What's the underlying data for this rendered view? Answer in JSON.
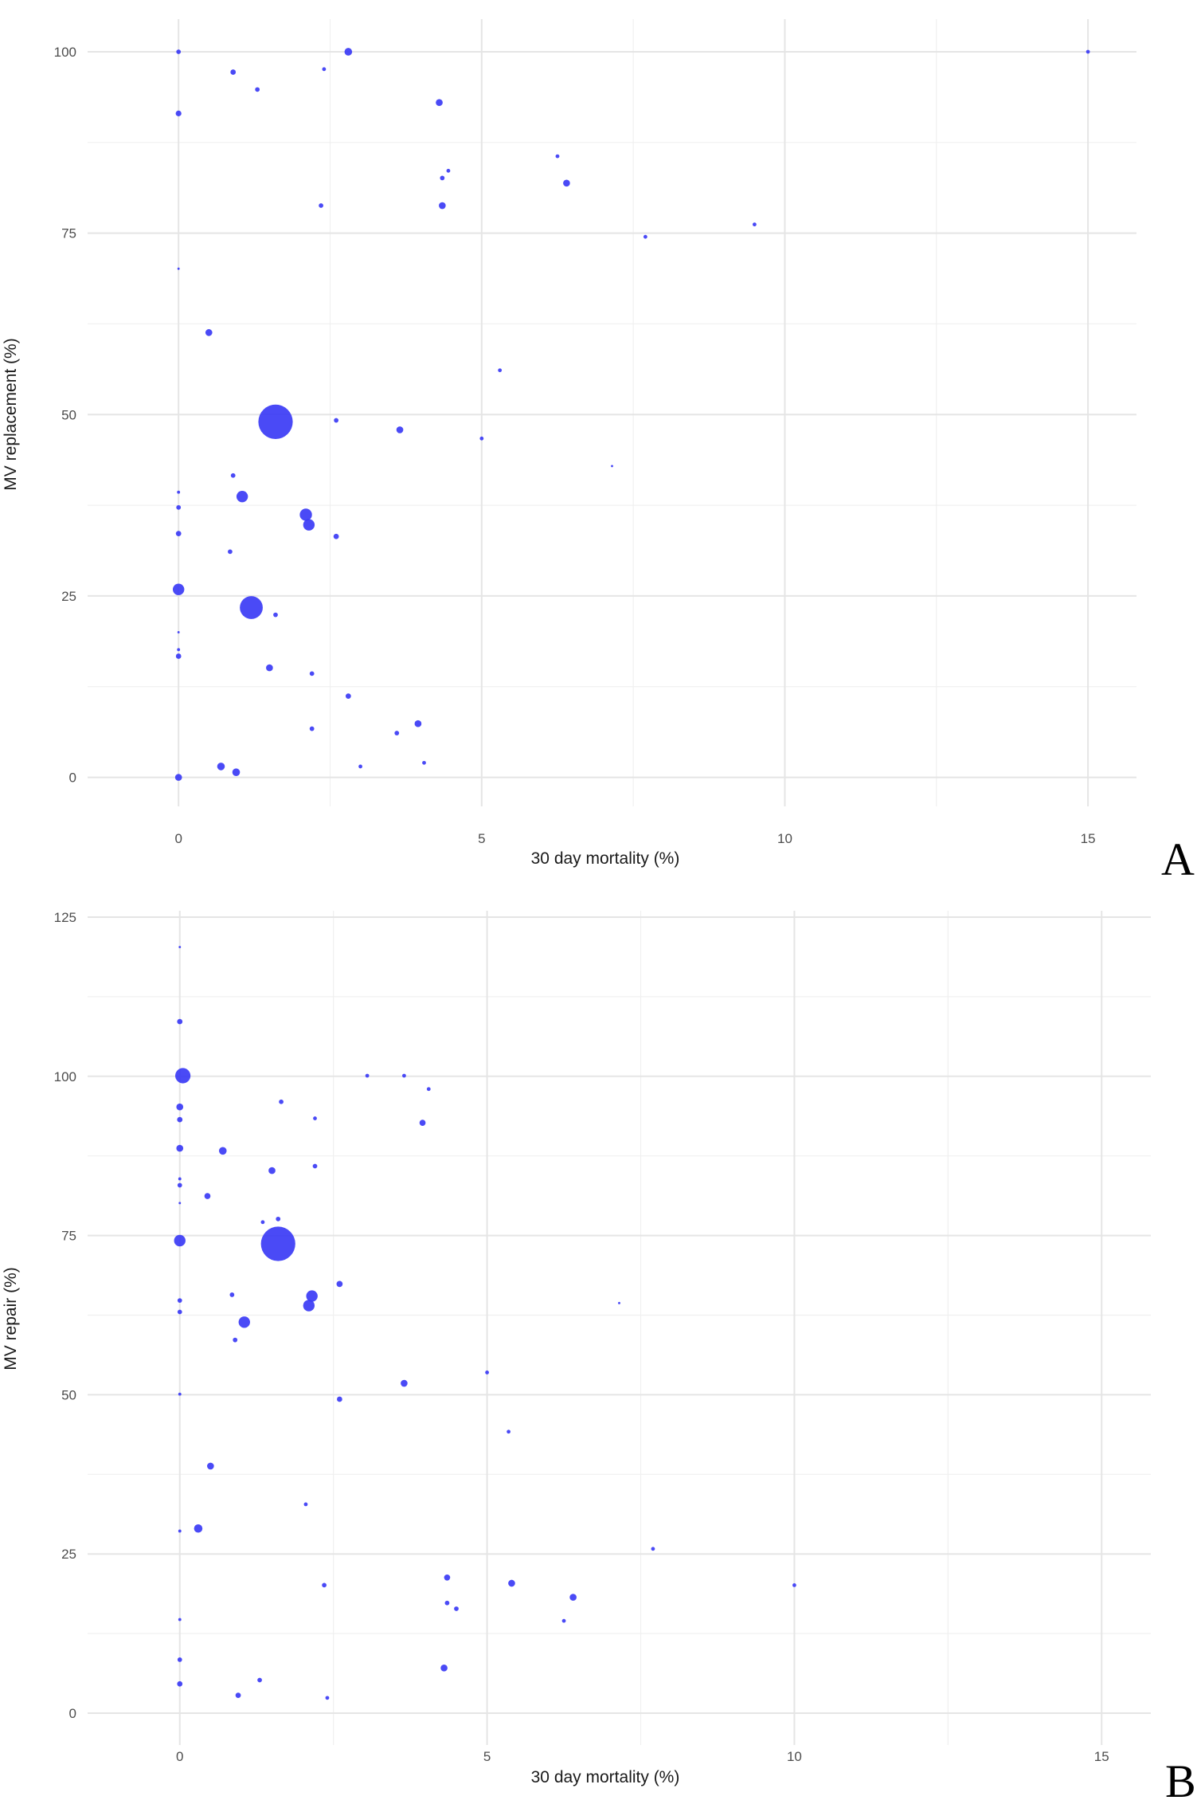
{
  "chart_data": [
    {
      "type": "scatter",
      "panel_label": "A",
      "xlabel": "30 day mortality (%)",
      "ylabel": "MV replacement (%)",
      "x_ticks": [
        "0",
        "5",
        "10",
        "15"
      ],
      "y_ticks": [
        "0",
        "25",
        "50",
        "75",
        "100"
      ],
      "xlim": [
        -1.5,
        15.8
      ],
      "ylim": [
        -4,
        104.5
      ],
      "grid": true,
      "legend": "none",
      "point_color": "#3b3bf5",
      "points": [
        {
          "x": 0,
          "y": 100,
          "size": 1.2
        },
        {
          "x": 2.8,
          "y": 100,
          "size": 2.0
        },
        {
          "x": 15.0,
          "y": 100,
          "size": 1.0
        },
        {
          "x": 0.9,
          "y": 97.2,
          "size": 1.4
        },
        {
          "x": 2.4,
          "y": 97.6,
          "size": 1.0
        },
        {
          "x": 1.3,
          "y": 94.8,
          "size": 1.2
        },
        {
          "x": 0,
          "y": 91.5,
          "size": 1.5
        },
        {
          "x": 4.3,
          "y": 93.0,
          "size": 1.8
        },
        {
          "x": 6.25,
          "y": 85.6,
          "size": 1.0
        },
        {
          "x": 4.45,
          "y": 83.6,
          "size": 1.0
        },
        {
          "x": 4.35,
          "y": 82.6,
          "size": 1.2
        },
        {
          "x": 6.4,
          "y": 81.9,
          "size": 1.8
        },
        {
          "x": 2.35,
          "y": 78.8,
          "size": 1.2
        },
        {
          "x": 4.35,
          "y": 78.8,
          "size": 1.8
        },
        {
          "x": 9.5,
          "y": 76.2,
          "size": 1.0
        },
        {
          "x": 7.7,
          "y": 74.5,
          "size": 1.0
        },
        {
          "x": 0,
          "y": 70.1,
          "size": 0.6
        },
        {
          "x": 0.5,
          "y": 61.3,
          "size": 1.8
        },
        {
          "x": 5.3,
          "y": 56.1,
          "size": 1.0
        },
        {
          "x": 1.6,
          "y": 49.0,
          "size": 9.0
        },
        {
          "x": 2.6,
          "y": 49.2,
          "size": 1.2
        },
        {
          "x": 3.65,
          "y": 47.9,
          "size": 1.8
        },
        {
          "x": 5.0,
          "y": 46.7,
          "size": 1.0
        },
        {
          "x": 7.15,
          "y": 42.9,
          "size": 0.6
        },
        {
          "x": 0.9,
          "y": 41.6,
          "size": 1.2
        },
        {
          "x": 0,
          "y": 39.3,
          "size": 0.8
        },
        {
          "x": 1.05,
          "y": 38.7,
          "size": 3.0
        },
        {
          "x": 0,
          "y": 37.2,
          "size": 1.2
        },
        {
          "x": 2.1,
          "y": 36.2,
          "size": 3.2
        },
        {
          "x": 2.15,
          "y": 34.8,
          "size": 3.0
        },
        {
          "x": 0,
          "y": 33.6,
          "size": 1.4
        },
        {
          "x": 2.6,
          "y": 33.2,
          "size": 1.4
        },
        {
          "x": 0.85,
          "y": 31.1,
          "size": 1.2
        },
        {
          "x": 0,
          "y": 25.9,
          "size": 3.0
        },
        {
          "x": 1.2,
          "y": 23.4,
          "size": 6.0
        },
        {
          "x": 1.6,
          "y": 22.4,
          "size": 1.2
        },
        {
          "x": 0,
          "y": 20.0,
          "size": 0.6
        },
        {
          "x": 0,
          "y": 17.6,
          "size": 0.8
        },
        {
          "x": 0,
          "y": 16.7,
          "size": 1.4
        },
        {
          "x": 1.5,
          "y": 15.1,
          "size": 1.8
        },
        {
          "x": 2.2,
          "y": 14.3,
          "size": 1.2
        },
        {
          "x": 2.8,
          "y": 11.2,
          "size": 1.4
        },
        {
          "x": 3.95,
          "y": 7.4,
          "size": 1.8
        },
        {
          "x": 2.2,
          "y": 6.7,
          "size": 1.2
        },
        {
          "x": 3.6,
          "y": 6.1,
          "size": 1.2
        },
        {
          "x": 4.05,
          "y": 2.0,
          "size": 1.0
        },
        {
          "x": 3.0,
          "y": 1.5,
          "size": 1.0
        },
        {
          "x": 0.7,
          "y": 1.5,
          "size": 2.0
        },
        {
          "x": 0.95,
          "y": 0.7,
          "size": 2.0
        },
        {
          "x": 0,
          "y": 0,
          "size": 1.8
        }
      ]
    },
    {
      "type": "scatter",
      "panel_label": "B",
      "xlabel": "30 day mortality (%)",
      "ylabel": "MV repair (%)",
      "x_ticks": [
        "0",
        "5",
        "10",
        "15"
      ],
      "y_ticks": [
        "0",
        "25",
        "50",
        "75",
        "100",
        "125"
      ],
      "xlim": [
        -1.5,
        15.8
      ],
      "ylim": [
        -5,
        126
      ],
      "grid": true,
      "legend": "none",
      "point_color": "#3b3bf5",
      "points": [
        {
          "x": 0,
          "y": 120.3,
          "size": 0.6
        },
        {
          "x": 0,
          "y": 108.6,
          "size": 1.4
        },
        {
          "x": 0.05,
          "y": 100.1,
          "size": 4.0
        },
        {
          "x": 3.05,
          "y": 100.1,
          "size": 1.0
        },
        {
          "x": 3.65,
          "y": 100.1,
          "size": 1.0
        },
        {
          "x": 4.05,
          "y": 98.0,
          "size": 1.0
        },
        {
          "x": 1.65,
          "y": 96.0,
          "size": 1.2
        },
        {
          "x": 0,
          "y": 95.2,
          "size": 1.8
        },
        {
          "x": 2.2,
          "y": 93.4,
          "size": 1.0
        },
        {
          "x": 0,
          "y": 93.2,
          "size": 1.4
        },
        {
          "x": 3.95,
          "y": 92.7,
          "size": 1.6
        },
        {
          "x": 0,
          "y": 88.7,
          "size": 1.8
        },
        {
          "x": 0.7,
          "y": 88.3,
          "size": 2.0
        },
        {
          "x": 2.2,
          "y": 85.9,
          "size": 1.2
        },
        {
          "x": 1.5,
          "y": 85.2,
          "size": 1.8
        },
        {
          "x": 0,
          "y": 83.9,
          "size": 0.8
        },
        {
          "x": 0,
          "y": 82.9,
          "size": 1.2
        },
        {
          "x": 0.45,
          "y": 81.2,
          "size": 1.6
        },
        {
          "x": 0,
          "y": 80.1,
          "size": 0.6
        },
        {
          "x": 1.6,
          "y": 77.6,
          "size": 1.2
        },
        {
          "x": 1.35,
          "y": 77.1,
          "size": 1.0
        },
        {
          "x": 0,
          "y": 74.2,
          "size": 3.0
        },
        {
          "x": 1.6,
          "y": 73.7,
          "size": 9.0
        },
        {
          "x": 2.6,
          "y": 67.4,
          "size": 1.6
        },
        {
          "x": 0.85,
          "y": 65.7,
          "size": 1.2
        },
        {
          "x": 2.15,
          "y": 65.5,
          "size": 3.0
        },
        {
          "x": 0,
          "y": 64.8,
          "size": 1.2
        },
        {
          "x": 7.15,
          "y": 64.4,
          "size": 0.6
        },
        {
          "x": 2.1,
          "y": 64.0,
          "size": 3.0
        },
        {
          "x": 0,
          "y": 63.0,
          "size": 1.2
        },
        {
          "x": 1.05,
          "y": 61.4,
          "size": 3.0
        },
        {
          "x": 0.9,
          "y": 58.6,
          "size": 1.2
        },
        {
          "x": 5.0,
          "y": 53.5,
          "size": 1.0
        },
        {
          "x": 3.65,
          "y": 51.8,
          "size": 1.8
        },
        {
          "x": 0,
          "y": 50.1,
          "size": 0.8
        },
        {
          "x": 2.6,
          "y": 49.3,
          "size": 1.4
        },
        {
          "x": 5.35,
          "y": 44.2,
          "size": 1.0
        },
        {
          "x": 0.5,
          "y": 38.8,
          "size": 1.8
        },
        {
          "x": 2.05,
          "y": 32.8,
          "size": 1.0
        },
        {
          "x": 0.3,
          "y": 29.0,
          "size": 2.2
        },
        {
          "x": 0,
          "y": 28.6,
          "size": 0.8
        },
        {
          "x": 7.7,
          "y": 25.8,
          "size": 1.0
        },
        {
          "x": 4.35,
          "y": 21.3,
          "size": 1.6
        },
        {
          "x": 5.4,
          "y": 20.4,
          "size": 1.8
        },
        {
          "x": 2.35,
          "y": 20.1,
          "size": 1.2
        },
        {
          "x": 10.0,
          "y": 20.1,
          "size": 1.0
        },
        {
          "x": 6.4,
          "y": 18.2,
          "size": 1.8
        },
        {
          "x": 4.35,
          "y": 17.3,
          "size": 1.2
        },
        {
          "x": 4.5,
          "y": 16.4,
          "size": 1.2
        },
        {
          "x": 0,
          "y": 14.7,
          "size": 0.8
        },
        {
          "x": 6.25,
          "y": 14.5,
          "size": 1.0
        },
        {
          "x": 0,
          "y": 8.4,
          "size": 1.2
        },
        {
          "x": 4.3,
          "y": 7.1,
          "size": 1.8
        },
        {
          "x": 1.3,
          "y": 5.2,
          "size": 1.2
        },
        {
          "x": 0,
          "y": 4.6,
          "size": 1.4
        },
        {
          "x": 0.95,
          "y": 2.8,
          "size": 1.4
        },
        {
          "x": 2.4,
          "y": 2.4,
          "size": 1.0
        }
      ]
    }
  ]
}
